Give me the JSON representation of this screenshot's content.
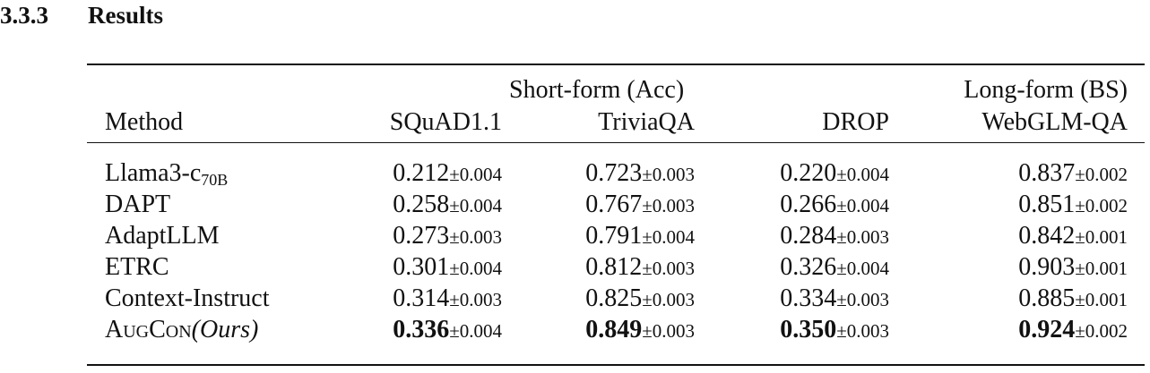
{
  "section": {
    "number": "3.3.3",
    "title": "Results"
  },
  "table": {
    "group_headers": {
      "short_form": "Short-form (Acc)",
      "long_form": "Long-form (BS)"
    },
    "columns": [
      "Method",
      "SQuAD1.1",
      "TriviaQA",
      "DROP",
      "WebGLM-QA"
    ],
    "rows": [
      {
        "method": "Llama3-c",
        "method_sub": "70B",
        "cells": [
          [
            "0.212",
            "±0.004"
          ],
          [
            "0.723",
            "±0.003"
          ],
          [
            "0.220",
            "±0.004"
          ],
          [
            "0.837",
            "±0.002"
          ]
        ],
        "bold": false
      },
      {
        "method": "DAPT",
        "cells": [
          [
            "0.258",
            "±0.004"
          ],
          [
            "0.767",
            "±0.003"
          ],
          [
            "0.266",
            "±0.004"
          ],
          [
            "0.851",
            "±0.002"
          ]
        ],
        "bold": false
      },
      {
        "method": "AdaptLLM",
        "cells": [
          [
            "0.273",
            "±0.003"
          ],
          [
            "0.791",
            "±0.004"
          ],
          [
            "0.284",
            "±0.003"
          ],
          [
            "0.842",
            "±0.001"
          ]
        ],
        "bold": false
      },
      {
        "method": "ETRC",
        "cells": [
          [
            "0.301",
            "±0.004"
          ],
          [
            "0.812",
            "±0.003"
          ],
          [
            "0.326",
            "±0.004"
          ],
          [
            "0.903",
            "±0.001"
          ]
        ],
        "bold": false
      },
      {
        "method": "Context-Instruct",
        "cells": [
          [
            "0.314",
            "±0.003"
          ],
          [
            "0.825",
            "±0.003"
          ],
          [
            "0.334",
            "±0.003"
          ],
          [
            "0.885",
            "±0.001"
          ]
        ],
        "bold": false
      },
      {
        "method": "AugCon",
        "method_suffix": "(Ours)",
        "cells": [
          [
            "0.336",
            "±0.004"
          ],
          [
            "0.849",
            "±0.003"
          ],
          [
            "0.350",
            "±0.003"
          ],
          [
            "0.924",
            "±0.002"
          ]
        ],
        "bold": true
      }
    ]
  }
}
